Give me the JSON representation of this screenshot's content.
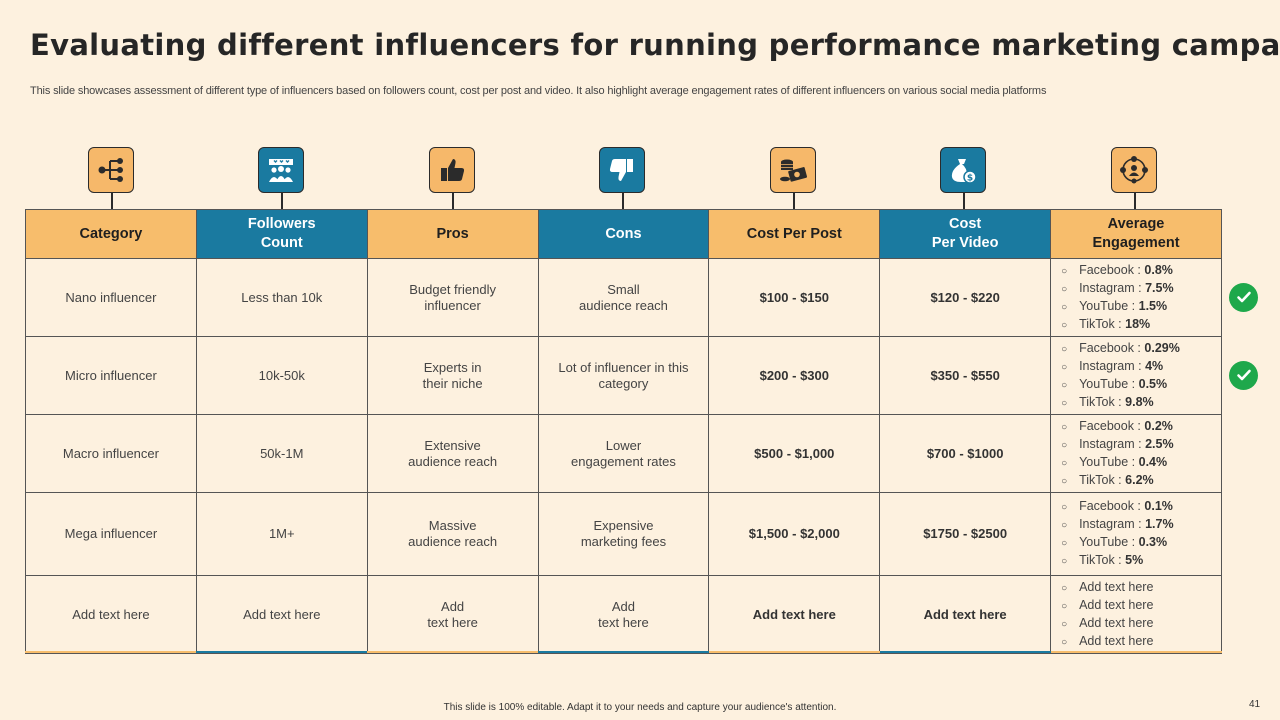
{
  "title": "Evaluating different influencers for running performance marketing campaign",
  "subtitle": "This slide showcases assessment of different type  of influencers based on followers count, cost per post and video.  It also highlight average engagement rates of different influencers on various social media platforms",
  "icons": [
    "hierarchy-icon",
    "followers-icon",
    "thumbs-up-icon",
    "thumbs-down-icon",
    "coins-icon",
    "money-bag-icon",
    "network-icon"
  ],
  "headers": [
    "Category",
    "Followers\nCount",
    "Pros",
    "Cons",
    "Cost Per Post",
    "Cost\nPer Video",
    "Average\nEngagement"
  ],
  "colors": {
    "orange": "#f7bd6c",
    "blue": "#1a7aa0",
    "background": "#fdf1df",
    "check": "#1ea84b"
  },
  "rows": [
    {
      "category": "Nano influencer",
      "followers": "Less than 10k",
      "pros": "Budget friendly\ninfluencer",
      "cons": "Small\naudience reach",
      "cost_post": "$100 - $150",
      "cost_video": "$120 - $220",
      "engagement": [
        {
          "platform": "Facebook :",
          "value": "0.8%"
        },
        {
          "platform": "Instagram  :",
          "value": "7.5%"
        },
        {
          "platform": "YouTube  :",
          "value": "1.5%"
        },
        {
          "platform": "TikTok  :",
          "value": "18%"
        }
      ],
      "checked": true
    },
    {
      "category": "Micro influencer",
      "followers": "10k-50k",
      "pros": "Experts in\ntheir niche",
      "cons": "Lot of influencer in this\ncategory",
      "cost_post": "$200 - $300",
      "cost_video": "$350 - $550",
      "engagement": [
        {
          "platform": "Facebook :",
          "value": "0.29%"
        },
        {
          "platform": "Instagram  :",
          "value": "4%"
        },
        {
          "platform": "YouTube  :",
          "value": "0.5%"
        },
        {
          "platform": "TikTok  :",
          "value": "9.8%"
        }
      ],
      "checked": true
    },
    {
      "category": "Macro influencer",
      "followers": "50k-1M",
      "pros": "Extensive\naudience reach",
      "cons": "Lower\nengagement rates",
      "cost_post": "$500 - $1,000",
      "cost_video": "$700 - $1000",
      "engagement": [
        {
          "platform": "Facebook :",
          "value": "0.2%"
        },
        {
          "platform": "Instagram  :",
          "value": "2.5%"
        },
        {
          "platform": "YouTube  :",
          "value": "0.4%"
        },
        {
          "platform": "TikTok  :",
          "value": "6.2%"
        }
      ],
      "checked": false
    },
    {
      "category": "Mega influencer",
      "followers": "1M+",
      "pros": "Massive\naudience reach",
      "cons": "Expensive\nmarketing fees",
      "cost_post": "$1,500 - $2,000",
      "cost_video": "$1750 - $2500",
      "engagement": [
        {
          "platform": "Facebook :",
          "value": "0.1%"
        },
        {
          "platform": "Instagram  :",
          "value": "1.7%"
        },
        {
          "platform": "YouTube  :",
          "value": "0.3%"
        },
        {
          "platform": "TikTok  :",
          "value": "5%"
        }
      ],
      "checked": false
    },
    {
      "category": "Add text here",
      "followers": "Add text here",
      "pros": "Add\ntext here",
      "cons": "Add\ntext here",
      "cost_post": "Add text here",
      "cost_video": "Add text here",
      "engagement": [
        {
          "platform": "Add text here",
          "value": ""
        },
        {
          "platform": "Add text here",
          "value": ""
        },
        {
          "platform": "Add text here",
          "value": ""
        },
        {
          "platform": "Add text here",
          "value": ""
        }
      ],
      "checked": false
    }
  ],
  "footer": "This slide is 100% editable.  Adapt it to your needs and capture your audience's attention.",
  "page_number": "41"
}
